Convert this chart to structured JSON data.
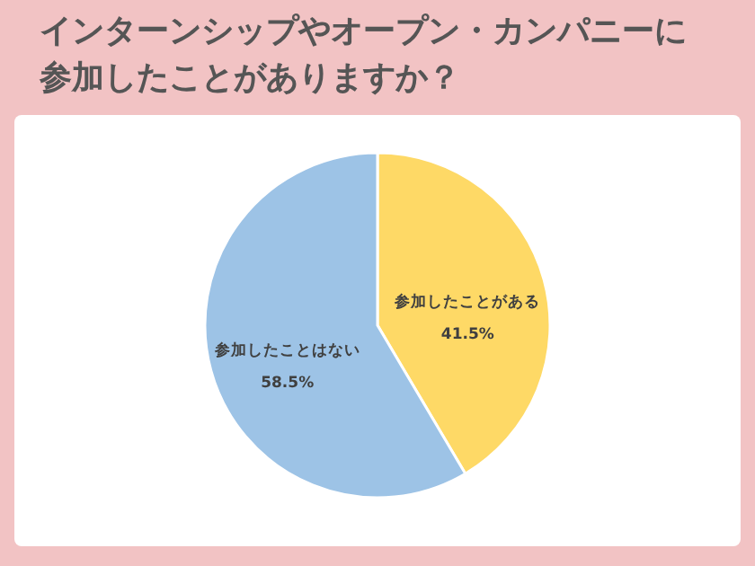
{
  "chart_data": {
    "type": "pie",
    "title": "インターンシップやオープン・カンパニーに参加したことがありますか？",
    "categories": [
      "参加したことがある",
      "参加したことはない"
    ],
    "values": [
      41.5,
      58.5
    ],
    "colors": [
      "#fed966",
      "#9dc3e6"
    ],
    "value_labels": [
      "41.5%",
      "58.5%"
    ],
    "legend": false
  }
}
